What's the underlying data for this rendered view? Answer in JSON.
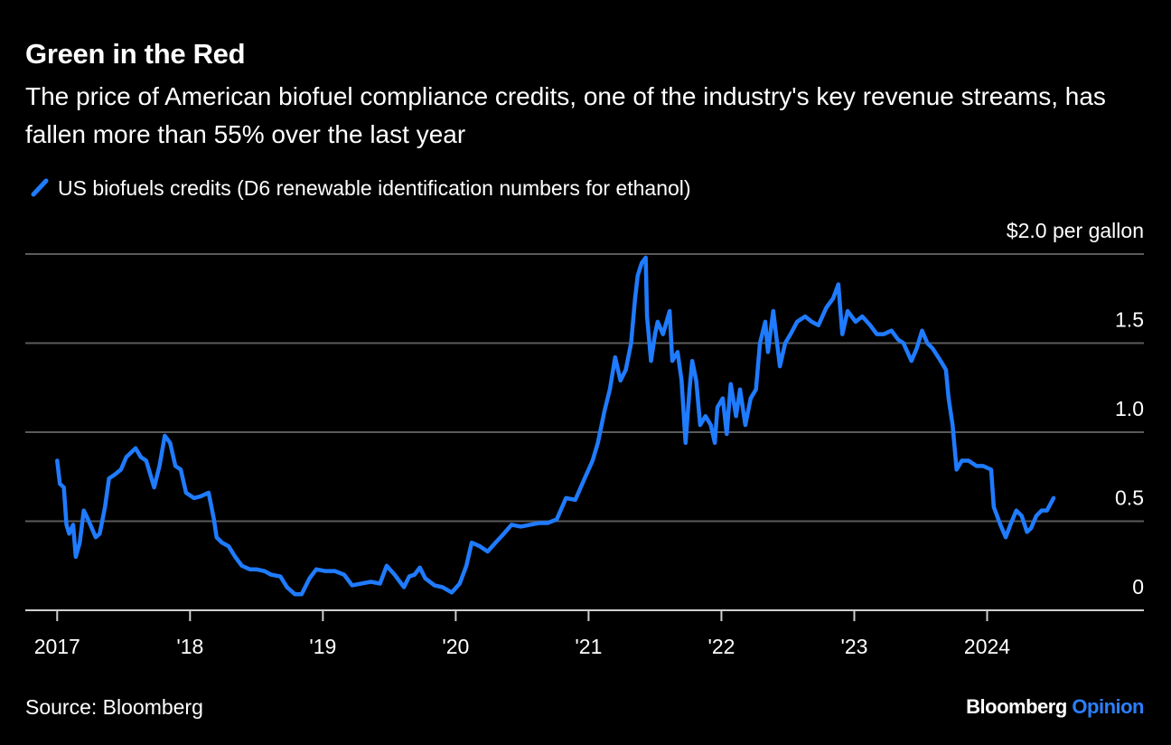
{
  "chart_data": {
    "type": "line",
    "title": "Green in the Red",
    "subtitle": "The price of American biofuel compliance credits, one of the industry's key revenue streams, has fallen more than 55% over the last year",
    "source": "Source: Bloomberg",
    "credit": [
      "Bloomberg",
      "Opinion"
    ],
    "credit_colors": [
      "#ffffff",
      "#2b7fff"
    ],
    "legend": "top-left",
    "grid": true,
    "xlim": [
      2016.76,
      2025.18
    ],
    "ylim": [
      0,
      2
    ],
    "xticks": [
      {
        "value": 2017,
        "label": "2017"
      },
      {
        "value": 2018,
        "label": "'18"
      },
      {
        "value": 2019,
        "label": "'19"
      },
      {
        "value": 2020,
        "label": "'20"
      },
      {
        "value": 2021,
        "label": "'21"
      },
      {
        "value": 2022,
        "label": "'22"
      },
      {
        "value": 2023,
        "label": "'23"
      },
      {
        "value": 2024,
        "label": "2024"
      }
    ],
    "yticks": [
      0,
      0.5,
      {
        "value": 1,
        "label": "1.0"
      },
      1.5,
      {
        "value": 2,
        "label": "$2.0 per gallon"
      }
    ],
    "x": [
      2017.0,
      2017.02,
      2017.05,
      2017.07,
      2017.09,
      2017.12,
      2017.14,
      2017.17,
      2017.2,
      2017.22,
      2017.25,
      2017.29,
      2017.32,
      2017.36,
      2017.39,
      2017.43,
      2017.48,
      2017.52,
      2017.59,
      2017.63,
      2017.67,
      2017.73,
      2017.77,
      2017.81,
      2017.85,
      2017.89,
      2017.93,
      2017.97,
      2018.03,
      2018.08,
      2018.14,
      2018.18,
      2018.2,
      2018.24,
      2018.29,
      2018.34,
      2018.39,
      2018.45,
      2018.5,
      2018.56,
      2018.61,
      2018.68,
      2018.73,
      2018.79,
      2018.84,
      2018.9,
      2018.95,
      2019.02,
      2019.09,
      2019.16,
      2019.22,
      2019.29,
      2019.36,
      2019.43,
      2019.48,
      2019.54,
      2019.61,
      2019.65,
      2019.69,
      2019.73,
      2019.77,
      2019.84,
      2019.9,
      2019.97,
      2020.03,
      2020.08,
      2020.12,
      2020.18,
      2020.24,
      2020.3,
      2020.35,
      2020.42,
      2020.49,
      2020.56,
      2020.63,
      2020.69,
      2020.76,
      2020.83,
      2020.9,
      2020.97,
      2021.03,
      2021.07,
      2021.12,
      2021.16,
      2021.2,
      2021.24,
      2021.28,
      2021.32,
      2021.35,
      2021.37,
      2021.4,
      2021.43,
      2021.44,
      2021.47,
      2021.5,
      2021.52,
      2021.56,
      2021.61,
      2021.63,
      2021.67,
      2021.7,
      2021.73,
      2021.76,
      2021.78,
      2021.81,
      2021.84,
      2021.88,
      2021.92,
      2021.95,
      2021.97,
      2022.01,
      2022.04,
      2022.07,
      2022.11,
      2022.14,
      2022.18,
      2022.22,
      2022.26,
      2022.29,
      2022.33,
      2022.35,
      2022.39,
      2022.44,
      2022.48,
      2022.52,
      2022.57,
      2022.63,
      2022.68,
      2022.73,
      2022.79,
      2022.84,
      2022.88,
      2022.91,
      2022.95,
      2023.01,
      2023.06,
      2023.12,
      2023.17,
      2023.22,
      2023.28,
      2023.33,
      2023.37,
      2023.43,
      2023.47,
      2023.51,
      2023.55,
      2023.59,
      2023.65,
      2023.69,
      2023.71,
      2023.74,
      2023.77,
      2023.81,
      2023.86,
      2023.92,
      2023.97,
      2024.03,
      2024.05,
      2024.1,
      2024.14,
      2024.18,
      2024.22,
      2024.26,
      2024.3,
      2024.33,
      2024.37,
      2024.41,
      2024.45,
      2024.5
    ],
    "series": [
      {
        "name": "US biofuels credits (D6 renewable identification numbers for ethanol)",
        "color": "#1f7bff",
        "values": [
          0.84,
          0.71,
          0.69,
          0.48,
          0.43,
          0.48,
          0.3,
          0.38,
          0.56,
          0.53,
          0.48,
          0.41,
          0.43,
          0.58,
          0.74,
          0.76,
          0.79,
          0.86,
          0.91,
          0.86,
          0.84,
          0.69,
          0.81,
          0.98,
          0.94,
          0.81,
          0.79,
          0.66,
          0.63,
          0.64,
          0.66,
          0.51,
          0.41,
          0.38,
          0.36,
          0.3,
          0.25,
          0.23,
          0.23,
          0.22,
          0.2,
          0.19,
          0.13,
          0.09,
          0.09,
          0.18,
          0.23,
          0.22,
          0.22,
          0.2,
          0.14,
          0.15,
          0.16,
          0.15,
          0.25,
          0.2,
          0.13,
          0.19,
          0.2,
          0.24,
          0.18,
          0.14,
          0.13,
          0.1,
          0.15,
          0.25,
          0.38,
          0.36,
          0.33,
          0.38,
          0.42,
          0.48,
          0.47,
          0.48,
          0.49,
          0.49,
          0.51,
          0.63,
          0.62,
          0.74,
          0.84,
          0.94,
          1.12,
          1.24,
          1.42,
          1.29,
          1.35,
          1.5,
          1.75,
          1.88,
          1.95,
          1.98,
          1.65,
          1.4,
          1.55,
          1.62,
          1.55,
          1.68,
          1.4,
          1.45,
          1.29,
          0.94,
          1.24,
          1.4,
          1.29,
          1.04,
          1.09,
          1.04,
          0.94,
          1.14,
          1.19,
          0.99,
          1.27,
          1.09,
          1.24,
          1.04,
          1.19,
          1.24,
          1.5,
          1.62,
          1.45,
          1.68,
          1.37,
          1.5,
          1.55,
          1.62,
          1.65,
          1.62,
          1.6,
          1.7,
          1.75,
          1.83,
          1.55,
          1.68,
          1.62,
          1.65,
          1.6,
          1.55,
          1.55,
          1.57,
          1.52,
          1.5,
          1.4,
          1.47,
          1.57,
          1.5,
          1.47,
          1.4,
          1.35,
          1.19,
          1.04,
          0.79,
          0.84,
          0.84,
          0.81,
          0.81,
          0.79,
          0.58,
          0.48,
          0.41,
          0.49,
          0.56,
          0.53,
          0.44,
          0.46,
          0.53,
          0.56,
          0.56,
          0.63
        ]
      }
    ]
  }
}
